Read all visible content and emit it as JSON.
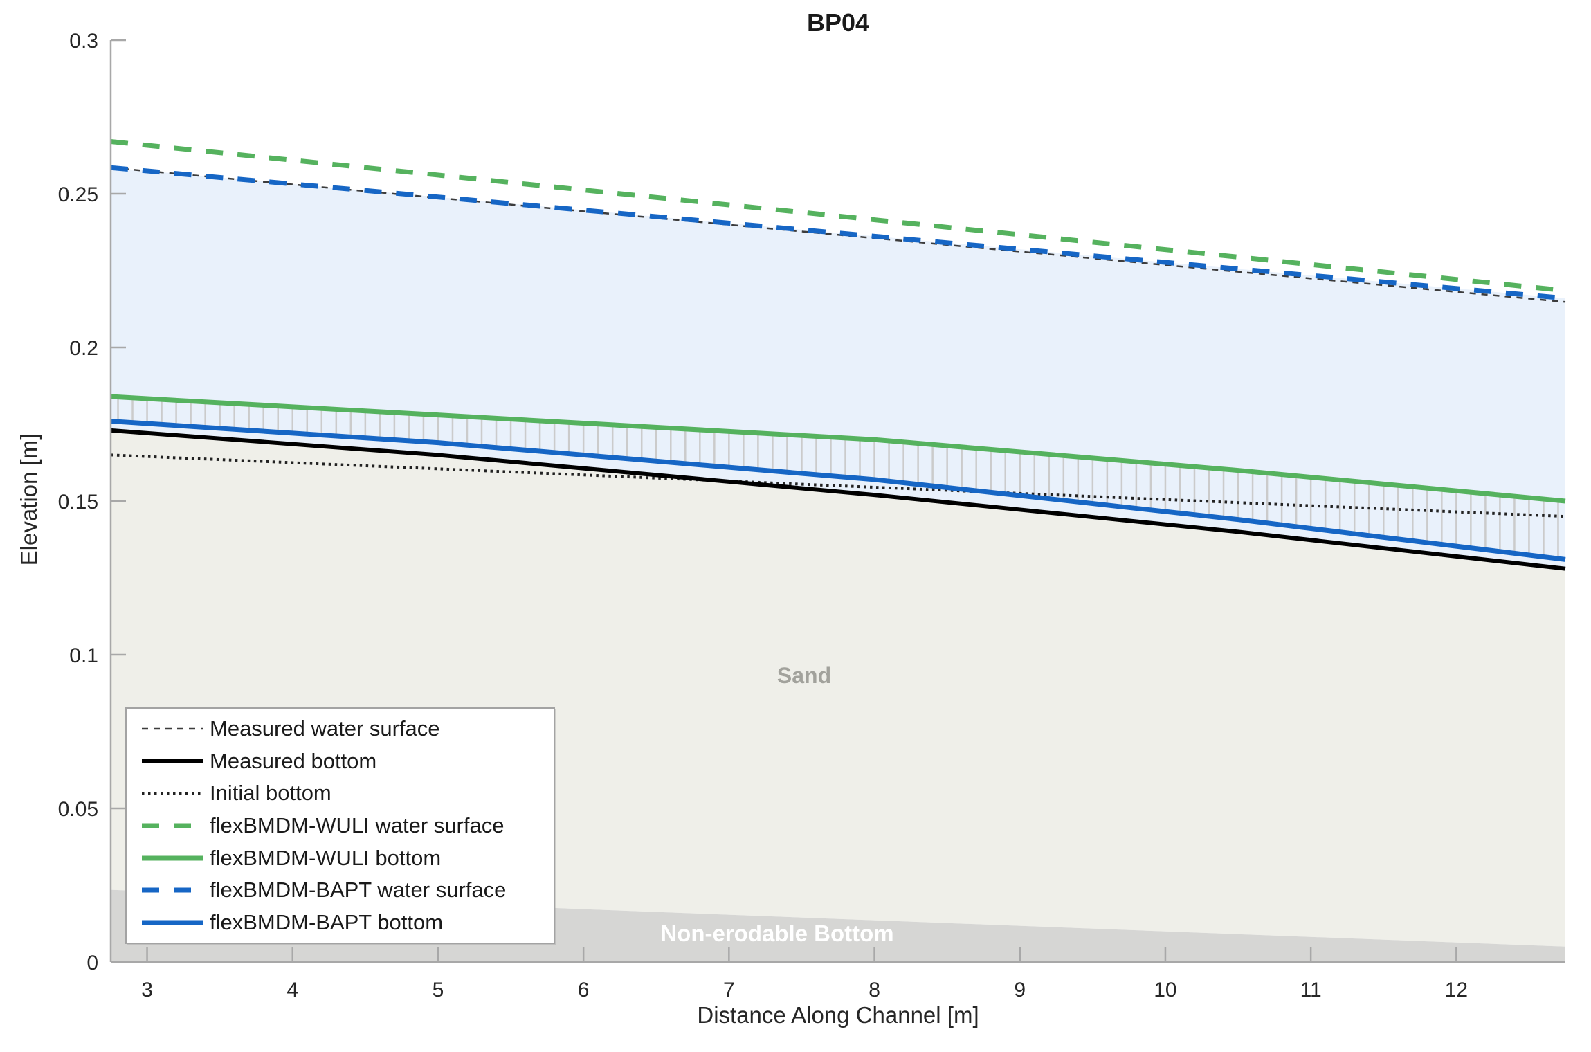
{
  "title": "BP04",
  "axes": {
    "x_label": "Distance Along Channel [m]",
    "y_label": "Elevation [m]"
  },
  "region_labels": {
    "sand": "Sand",
    "non_erodable": "Non-erodable Bottom"
  },
  "colors": {
    "green": "#55b25e",
    "blue": "#1666c5",
    "water_fill": "#e9f1fb",
    "sand_fill": "#efefe9",
    "non_erodable_fill": "#d6d6d4",
    "axis": "#a8a8a8",
    "tick_text": "#262626",
    "hatch": "#cbcbcb",
    "sand_label": "#a2a29c",
    "non_erodable_label": "#ffffff"
  },
  "chart_data": {
    "type": "line",
    "title": "BP04",
    "xlabel": "Distance Along Channel [m]",
    "ylabel": "Elevation [m]",
    "xlim": [
      2.75,
      12.75
    ],
    "ylim": [
      0,
      0.3
    ],
    "x_ticks": [
      3,
      4,
      5,
      6,
      7,
      8,
      9,
      10,
      11,
      12
    ],
    "y_ticks": [
      0,
      0.05,
      0.1,
      0.15,
      0.2,
      0.25,
      0.3
    ],
    "grid": false,
    "legend_position": "south-west",
    "series": [
      {
        "name": "Measured water surface",
        "color": "#3c3c3c",
        "width": 2.5,
        "dash": "9 8",
        "z": 2,
        "x": [
          2.75,
          12.75
        ],
        "y": [
          0.2585,
          0.2148
        ]
      },
      {
        "name": "Measured bottom",
        "color": "#000000",
        "width": 6,
        "z": 5,
        "x": [
          2.75,
          5,
          8,
          10.5,
          12.75
        ],
        "y": [
          0.173,
          0.165,
          0.152,
          0.14,
          0.128
        ]
      },
      {
        "name": "Initial bottom",
        "color": "#222222",
        "width": 4,
        "dash": "3.5 5.5",
        "z": 1,
        "x": [
          2.75,
          12.75
        ],
        "y": [
          0.165,
          0.145
        ]
      },
      {
        "name": "flexBMDM-WULI water surface",
        "color": "#55b25e",
        "width": 7,
        "dash": "25 21",
        "z": 3,
        "x": [
          2.75,
          12.75
        ],
        "y": [
          0.267,
          0.2185
        ]
      },
      {
        "name": "flexBMDM-WULI bottom",
        "color": "#55b25e",
        "width": 7,
        "z": 7,
        "x": [
          2.75,
          5,
          8,
          10.5,
          12.75
        ],
        "y": [
          0.184,
          0.178,
          0.17,
          0.16,
          0.15
        ]
      },
      {
        "name": "flexBMDM-BAPT water surface",
        "color": "#1666c5",
        "width": 7,
        "dash": "25 21",
        "z": 4,
        "x": [
          2.75,
          12.75
        ],
        "y": [
          0.2585,
          0.216
        ]
      },
      {
        "name": "flexBMDM-BAPT bottom",
        "color": "#1666c5",
        "width": 7,
        "z": 6,
        "x": [
          2.75,
          5,
          8,
          10.5,
          12.75
        ],
        "y": [
          0.176,
          0.169,
          0.157,
          0.144,
          0.131
        ]
      }
    ],
    "boundaries": {
      "non_erodable_top": {
        "x": [
          2.75,
          6,
          12.75
        ],
        "y": [
          0.0235,
          0.0172,
          0.005
        ]
      }
    },
    "regions": [
      {
        "name": "water",
        "fill": "#e9f1fb",
        "top": "flexBMDM-BAPT water surface",
        "bottom": "Measured bottom"
      },
      {
        "name": "sand",
        "fill": "#efefe9",
        "top": "Measured bottom",
        "bottom": "non_erodable_top"
      },
      {
        "name": "non-erodable",
        "fill": "#d6d6d4",
        "top": "non_erodable_top",
        "bottom": 0
      }
    ],
    "hatch": {
      "between": [
        "flexBMDM-WULI bottom",
        "flexBMDM-BAPT bottom"
      ],
      "x_start": 2.8,
      "x_end": 12.7,
      "step": 0.1,
      "color": "#cbcbcb",
      "width": 2.5
    }
  },
  "legend": {
    "entries": [
      {
        "label": "Measured water surface",
        "series": "Measured water surface"
      },
      {
        "label": "Measured bottom",
        "series": "Measured bottom"
      },
      {
        "label": "Initial bottom",
        "series": "Initial bottom"
      },
      {
        "label": "flexBMDM-WULI water surface",
        "series": "flexBMDM-WULI water surface"
      },
      {
        "label": "flexBMDM-WULI bottom",
        "series": "flexBMDM-WULI bottom"
      },
      {
        "label": "flexBMDM-BAPT water surface",
        "series": "flexBMDM-BAPT water surface"
      },
      {
        "label": "flexBMDM-BAPT bottom",
        "series": "flexBMDM-BAPT bottom"
      }
    ]
  }
}
